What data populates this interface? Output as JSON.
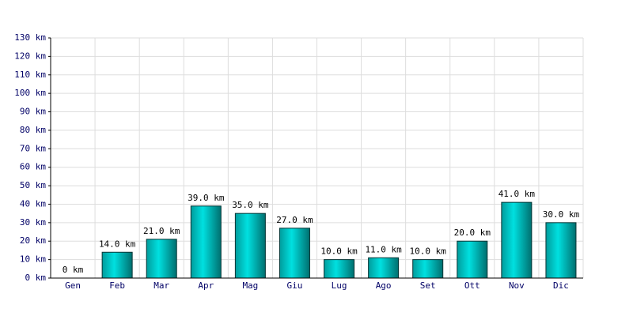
{
  "chart_data": {
    "type": "bar",
    "categories": [
      "Gen",
      "Feb",
      "Mar",
      "Apr",
      "Mag",
      "Giu",
      "Lug",
      "Ago",
      "Set",
      "Ott",
      "Nov",
      "Dic"
    ],
    "values": [
      0,
      14,
      21,
      39,
      35,
      27,
      10,
      11,
      10,
      20,
      41,
      30
    ],
    "value_labels": [
      "0 km",
      "14.0 km",
      "21.0 km",
      "39.0 km",
      "35.0 km",
      "27.0 km",
      "10.0 km",
      "11.0 km",
      "10.0 km",
      "20.0 km",
      "41.0 km",
      "30.0 km"
    ],
    "color": "#00e0e0",
    "ylim": [
      0,
      130
    ],
    "yticks": [
      {
        "value": 0,
        "label": "0 km"
      },
      {
        "value": 10,
        "label": "10 km"
      },
      {
        "value": 20,
        "label": "20 km"
      },
      {
        "value": 30,
        "label": "30 km"
      },
      {
        "value": 40,
        "label": "40 km"
      },
      {
        "value": 50,
        "label": "50 km"
      },
      {
        "value": 60,
        "label": "60 km"
      },
      {
        "value": 70,
        "label": "70 km"
      },
      {
        "value": 80,
        "label": "80 km"
      },
      {
        "value": 90,
        "label": "90 km"
      },
      {
        "value": 100,
        "label": "100 km"
      },
      {
        "value": 110,
        "label": "110 km"
      },
      {
        "value": 120,
        "label": "120 km"
      },
      {
        "value": 130,
        "label": "130 km"
      }
    ],
    "grid": true
  }
}
